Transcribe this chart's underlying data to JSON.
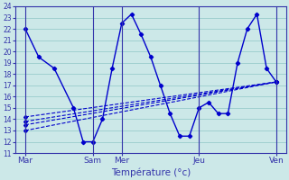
{
  "xlabel": "Température (°c)",
  "background_color": "#cce8e8",
  "grid_color": "#99cccc",
  "line_color": "#0000cc",
  "spine_color": "#3333aa",
  "ylim": [
    11,
    24
  ],
  "xlim": [
    0,
    14
  ],
  "day_labels": [
    "Mar",
    "Sam",
    "Mer",
    "Jeu",
    "Ven"
  ],
  "day_positions": [
    0.5,
    4.0,
    5.5,
    9.5,
    13.5
  ],
  "vline_positions": [
    0.5,
    4.0,
    5.5,
    9.5,
    13.5
  ],
  "main_x": [
    0.5,
    1.2,
    2.0,
    3.0,
    3.5,
    4.0,
    4.5,
    5.0,
    5.5,
    6.0,
    6.5,
    7.0,
    7.5,
    8.0,
    8.5,
    9.0,
    9.5,
    10.0,
    10.5,
    11.0,
    11.5,
    12.0,
    12.5,
    13.0,
    13.5
  ],
  "main_y": [
    22,
    19.5,
    18.5,
    15,
    12,
    12,
    14,
    18.5,
    22.5,
    23.3,
    21.5,
    19.5,
    17,
    14.5,
    12.5,
    12.5,
    15,
    15.5,
    14.5,
    14.5,
    19,
    22,
    23.3,
    18.5,
    17.3
  ],
  "trend1_x": [
    0.5,
    13.5
  ],
  "trend1_y": [
    13.5,
    17.3
  ],
  "trend2_x": [
    0.5,
    13.5
  ],
  "trend2_y": [
    13.8,
    17.3
  ],
  "trend3_x": [
    0.5,
    13.5
  ],
  "trend3_y": [
    14.2,
    17.3
  ],
  "trend4_x": [
    0.5,
    13.5
  ],
  "trend4_y": [
    13.0,
    17.3
  ]
}
